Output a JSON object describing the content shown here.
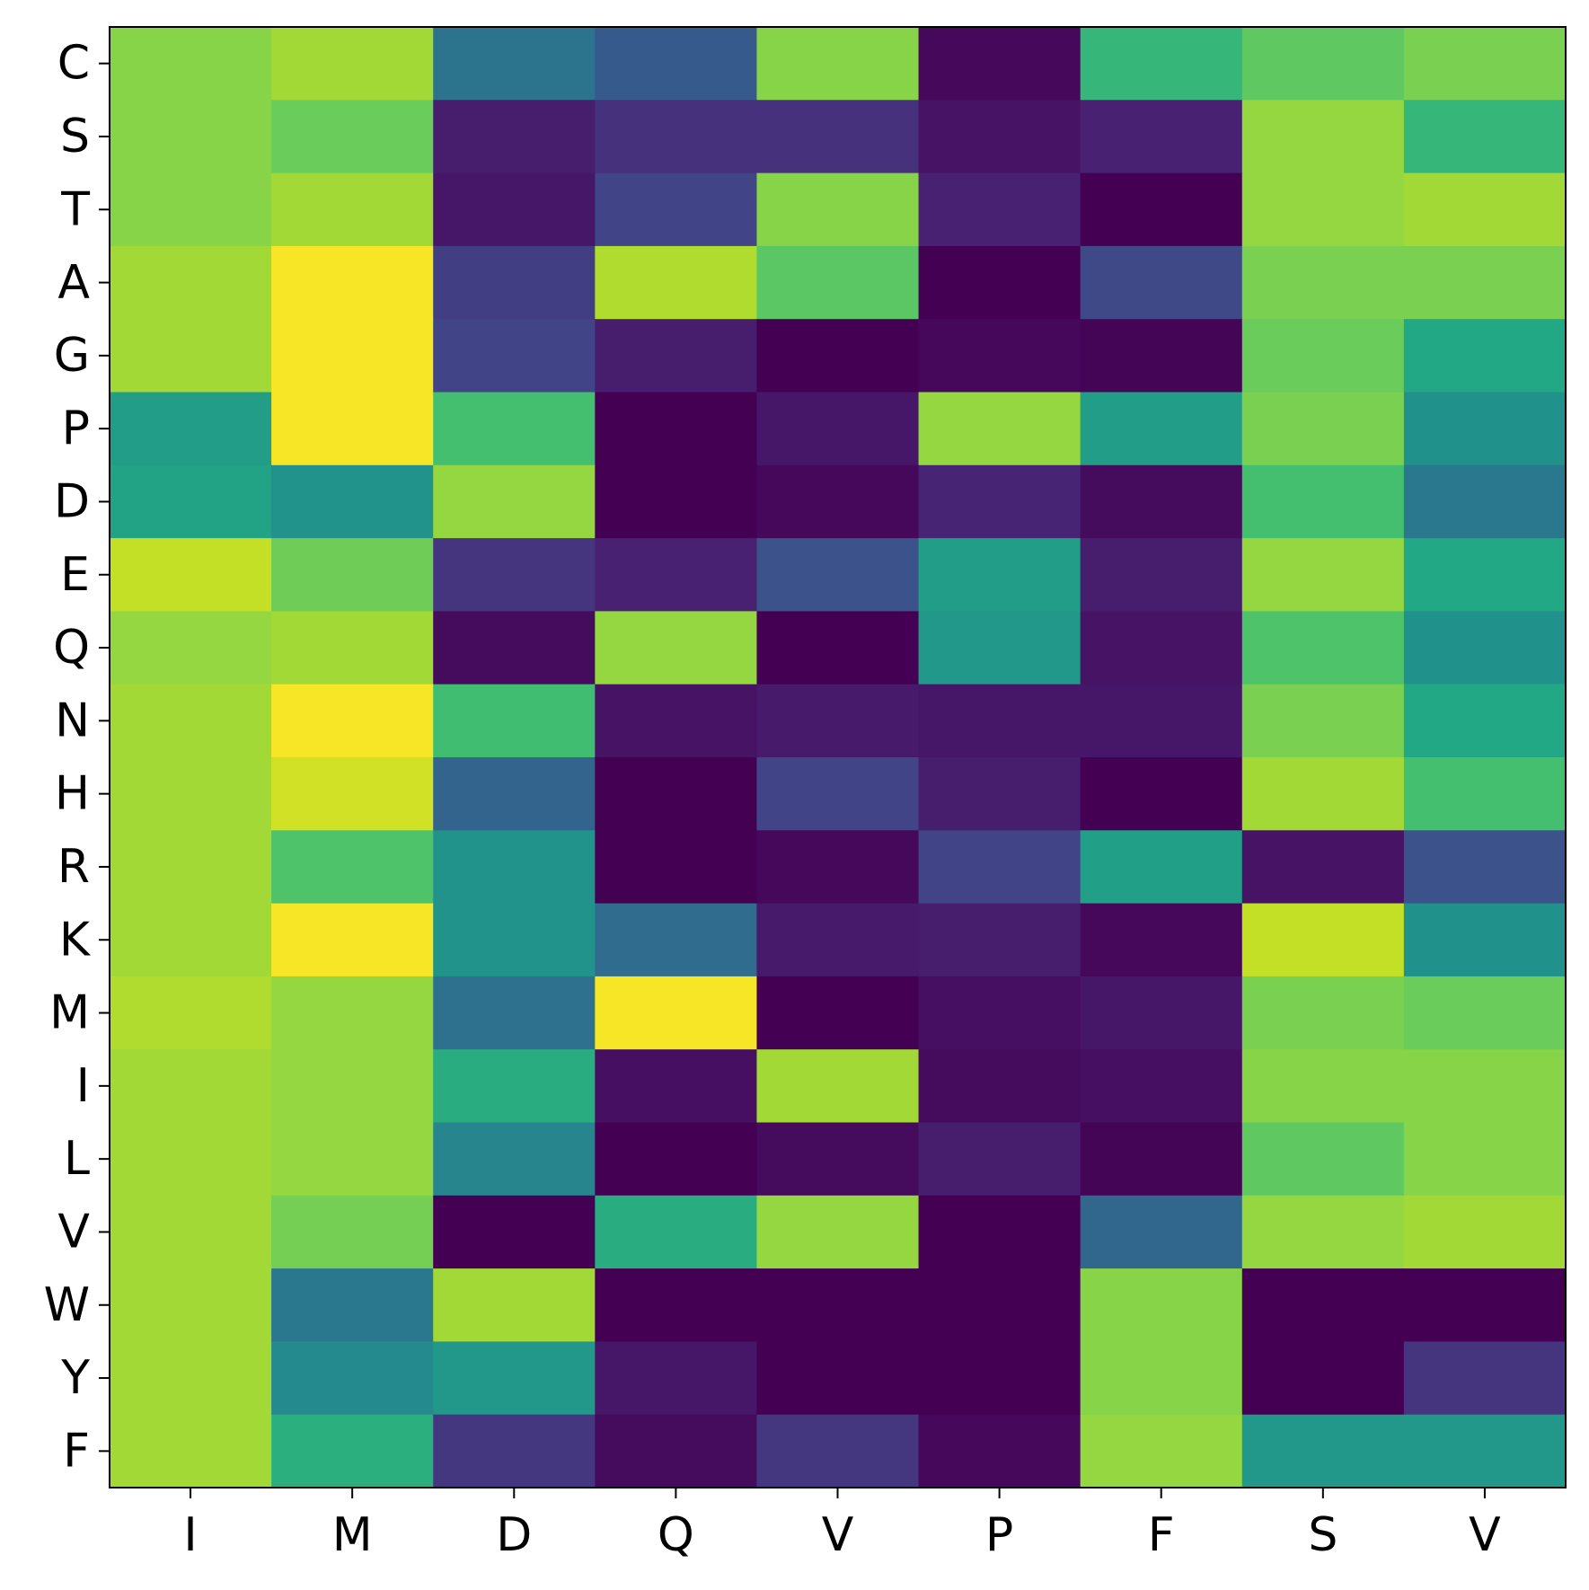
{
  "chart_data": {
    "type": "heatmap",
    "colormap": "viridis",
    "x_labels": [
      "I",
      "M",
      "D",
      "Q",
      "V",
      "P",
      "F",
      "S",
      "V"
    ],
    "y_labels": [
      "C",
      "S",
      "T",
      "A",
      "G",
      "P",
      "D",
      "E",
      "Q",
      "N",
      "H",
      "R",
      "K",
      "M",
      "I",
      "L",
      "V",
      "W",
      "Y",
      "F"
    ],
    "value_range": [
      0,
      1
    ],
    "values": [
      [
        0.82,
        0.86,
        0.38,
        0.28,
        0.82,
        0.02,
        0.66,
        0.75,
        0.8
      ],
      [
        0.82,
        0.77,
        0.08,
        0.14,
        0.14,
        0.05,
        0.09,
        0.84,
        0.66
      ],
      [
        0.82,
        0.86,
        0.06,
        0.2,
        0.82,
        0.09,
        0.0,
        0.84,
        0.86
      ],
      [
        0.86,
        0.99,
        0.18,
        0.88,
        0.74,
        0.0,
        0.22,
        0.8,
        0.8
      ],
      [
        0.86,
        0.99,
        0.2,
        0.08,
        0.0,
        0.02,
        0.01,
        0.77,
        0.6
      ],
      [
        0.55,
        0.99,
        0.7,
        0.0,
        0.06,
        0.84,
        0.55,
        0.8,
        0.5
      ],
      [
        0.58,
        0.51,
        0.84,
        0.0,
        0.02,
        0.1,
        0.03,
        0.7,
        0.4
      ],
      [
        0.91,
        0.78,
        0.15,
        0.09,
        0.25,
        0.55,
        0.08,
        0.84,
        0.6
      ],
      [
        0.84,
        0.86,
        0.03,
        0.84,
        0.0,
        0.53,
        0.05,
        0.72,
        0.5
      ],
      [
        0.86,
        0.99,
        0.69,
        0.05,
        0.07,
        0.06,
        0.06,
        0.8,
        0.6
      ],
      [
        0.86,
        0.93,
        0.32,
        0.0,
        0.2,
        0.08,
        0.0,
        0.86,
        0.7
      ],
      [
        0.86,
        0.72,
        0.51,
        0.0,
        0.02,
        0.2,
        0.56,
        0.05,
        0.25
      ],
      [
        0.86,
        0.99,
        0.51,
        0.35,
        0.07,
        0.08,
        0.02,
        0.91,
        0.5
      ],
      [
        0.88,
        0.84,
        0.37,
        0.99,
        0.0,
        0.04,
        0.06,
        0.8,
        0.77
      ],
      [
        0.86,
        0.84,
        0.62,
        0.04,
        0.86,
        0.03,
        0.04,
        0.82,
        0.82
      ],
      [
        0.86,
        0.84,
        0.45,
        0.0,
        0.03,
        0.08,
        0.01,
        0.75,
        0.82
      ],
      [
        0.86,
        0.79,
        0.0,
        0.62,
        0.84,
        0.0,
        0.33,
        0.84,
        0.86
      ],
      [
        0.86,
        0.4,
        0.86,
        0.0,
        0.0,
        0.0,
        0.82,
        0.0,
        0.0
      ],
      [
        0.86,
        0.47,
        0.53,
        0.06,
        0.0,
        0.0,
        0.82,
        0.0,
        0.15
      ],
      [
        0.86,
        0.63,
        0.16,
        0.03,
        0.16,
        0.02,
        0.84,
        0.53,
        0.53
      ]
    ],
    "grid": false,
    "legend": "none"
  }
}
